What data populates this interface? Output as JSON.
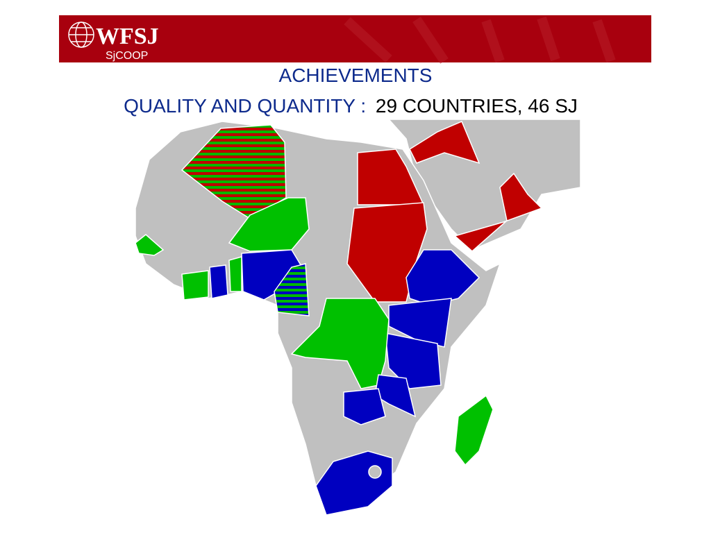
{
  "header": {
    "logo": "WFSJ",
    "sublogo": "SjCOOP"
  },
  "title": {
    "line1": "ACHIEVEMENTS",
    "line2_label": "QUALITY AND QUANTITY :",
    "line2_value": "29 COUNTRIES, 46 SJ"
  }
}
